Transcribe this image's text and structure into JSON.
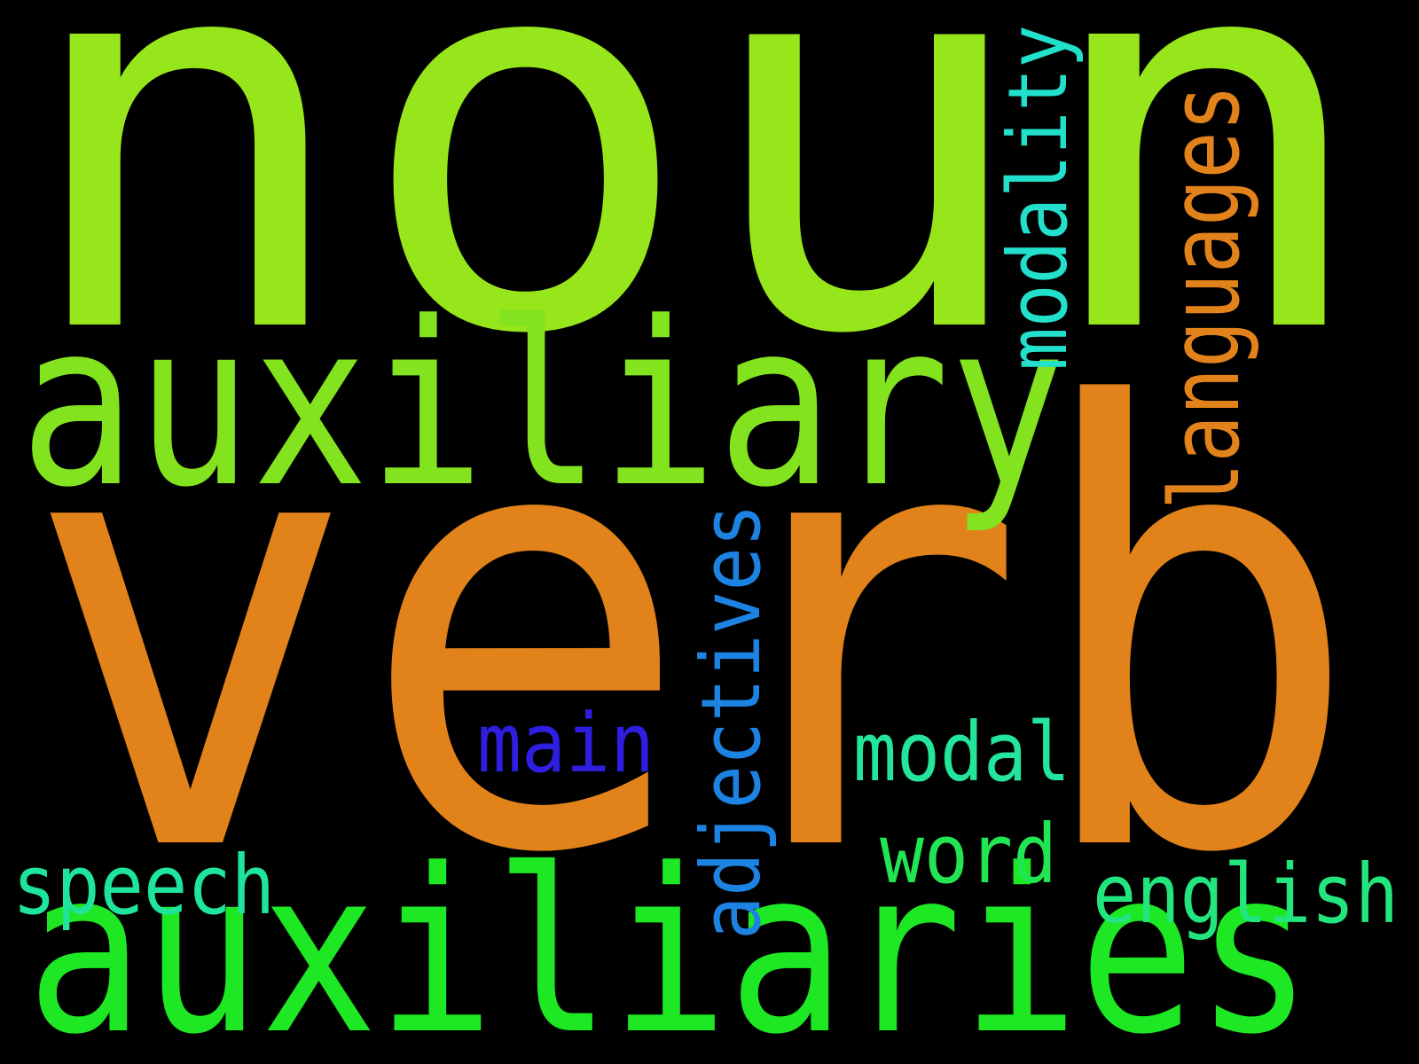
{
  "words": [
    {
      "text": "noun",
      "color": "#97e51b"
    },
    {
      "text": "verb",
      "color": "#e2821a"
    },
    {
      "text": "auxiliary",
      "color": "#82e31e"
    },
    {
      "text": "auxiliaries",
      "color": "#1de823"
    },
    {
      "text": "modality",
      "color": "#22e0cc"
    },
    {
      "text": "languages",
      "color": "#e2821a"
    },
    {
      "text": "adjectives",
      "color": "#1d83e2"
    },
    {
      "text": "main",
      "color": "#2d1ee0"
    },
    {
      "text": "modal",
      "color": "#24e59c"
    },
    {
      "text": "word",
      "color": "#22e552"
    },
    {
      "text": "speech",
      "color": "#1fe59c"
    },
    {
      "text": "english",
      "color": "#22e57d"
    }
  ]
}
